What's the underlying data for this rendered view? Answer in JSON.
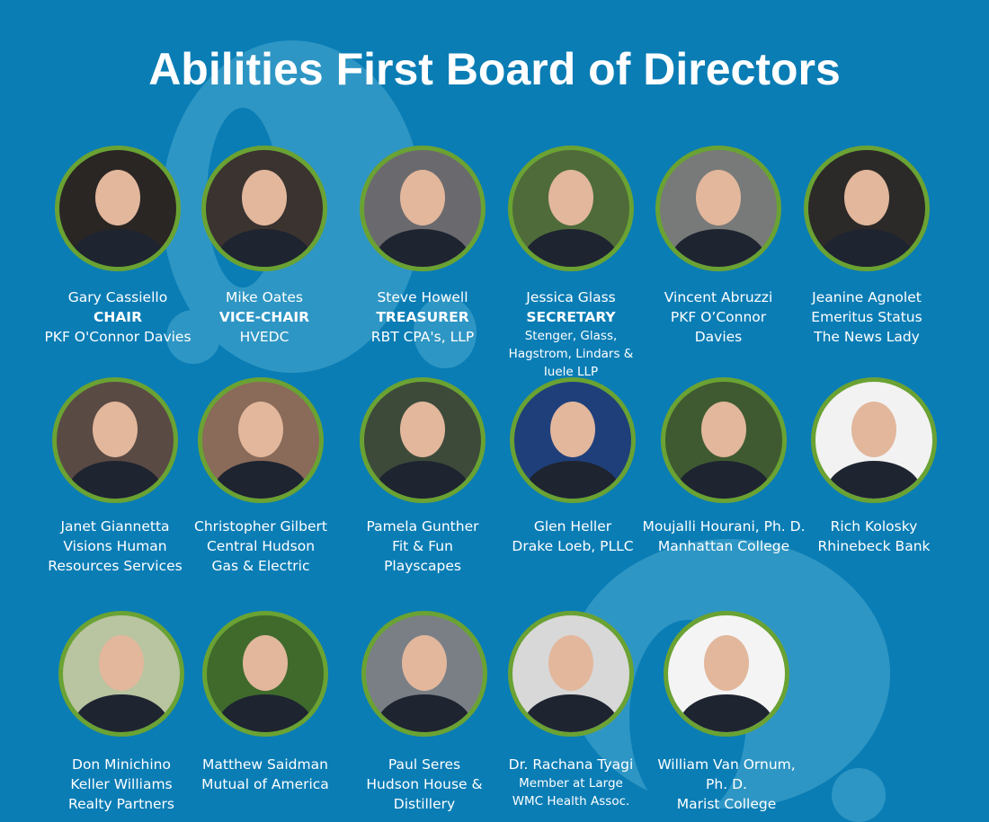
{
  "title": "Abilities First Board of Directors",
  "colors": {
    "background": "#0a7db5",
    "ring": "#6aa233",
    "watermark": "#2e96c4",
    "text": "#ffffff"
  },
  "members": [
    {
      "lines": [
        {
          "text": "Gary Cassiello"
        },
        {
          "text": "CHAIR",
          "bold": true
        },
        {
          "text": "PKF O'Connor Davies"
        }
      ],
      "photo_bg": "#2a2624"
    },
    {
      "lines": [
        {
          "text": "Mike Oates"
        },
        {
          "text": "VICE-CHAIR",
          "bold": true
        },
        {
          "text": "HVEDC"
        }
      ],
      "photo_bg": "#3a3330"
    },
    {
      "lines": [
        {
          "text": "Steve Howell"
        },
        {
          "text": "TREASURER",
          "bold": true
        },
        {
          "text": "RBT CPA's, LLP"
        }
      ],
      "photo_bg": "#6a6a6e"
    },
    {
      "lines": [
        {
          "text": "Jessica Glass"
        },
        {
          "text": "SECRETARY",
          "bold": true
        },
        {
          "text": "Stenger, Glass,",
          "small": true
        },
        {
          "text": "Hagstrom, Lindars &",
          "small": true
        },
        {
          "text": "Iuele LLP",
          "small": true
        }
      ],
      "photo_bg": "#4f6b3a"
    },
    {
      "lines": [
        {
          "text": "Vincent Abruzzi"
        },
        {
          "text": "PKF O’Connor"
        },
        {
          "text": "Davies"
        }
      ],
      "photo_bg": "#777a78"
    },
    {
      "lines": [
        {
          "text": "Jeanine Agnolet"
        },
        {
          "text": "Emeritus Status"
        },
        {
          "text": "The News Lady"
        }
      ],
      "photo_bg": "#2c2a28"
    },
    {
      "lines": [
        {
          "text": "Janet Giannetta"
        },
        {
          "text": "Visions Human"
        },
        {
          "text": "Resources Services"
        }
      ],
      "photo_bg": "#5a4a44"
    },
    {
      "lines": [
        {
          "text": "Christopher Gilbert"
        },
        {
          "text": "Central Hudson"
        },
        {
          "text": "Gas & Electric"
        }
      ],
      "photo_bg": "#8a6a58"
    },
    {
      "lines": [
        {
          "text": "Pamela Gunther"
        },
        {
          "text": "Fit & Fun"
        },
        {
          "text": "Playscapes"
        }
      ],
      "photo_bg": "#3d4a3a"
    },
    {
      "lines": [
        {
          "text": "Glen Heller"
        },
        {
          "text": "Drake Loeb, PLLC"
        }
      ],
      "photo_bg": "#1f3f7a"
    },
    {
      "lines": [
        {
          "text": "Moujalli Hourani, Ph. D."
        },
        {
          "text": "Manhattan College"
        }
      ],
      "photo_bg": "#3f5a30"
    },
    {
      "lines": [
        {
          "text": "Rich Kolosky"
        },
        {
          "text": "Rhinebeck Bank"
        }
      ],
      "photo_bg": "#f2f2f2"
    },
    {
      "lines": [
        {
          "text": "Don Minichino"
        },
        {
          "text": "Keller Williams"
        },
        {
          "text": "Realty Partners"
        }
      ],
      "photo_bg": "#b9c4a0"
    },
    {
      "lines": [
        {
          "text": "Matthew Saidman"
        },
        {
          "text": "Mutual of America"
        }
      ],
      "photo_bg": "#3f6a2c"
    },
    {
      "lines": [
        {
          "text": "Paul Seres"
        },
        {
          "text": "Hudson House &"
        },
        {
          "text": "Distillery"
        }
      ],
      "photo_bg": "#7a7f86"
    },
    {
      "lines": [
        {
          "text": "Dr. Rachana Tyagi"
        },
        {
          "text": "Member at Large",
          "small": true
        },
        {
          "text": "WMC Health Assoc.",
          "small": true
        }
      ],
      "photo_bg": "#d8d8d8"
    },
    {
      "lines": [
        {
          "text": "William Van Ornum,"
        },
        {
          "text": "Ph. D."
        },
        {
          "text": "Marist College"
        }
      ],
      "photo_bg": "#f4f4f4"
    }
  ]
}
